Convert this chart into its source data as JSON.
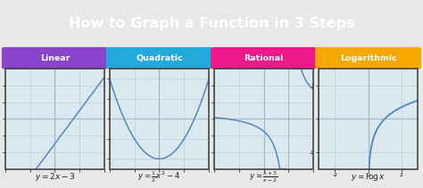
{
  "title": "How to Graph a Function in 3 Steps",
  "title_bg_top": "#3a3a3a",
  "title_bg_bottom": "#1a1a1a",
  "title_color": "#ffffff",
  "main_bg": "#e8e8e8",
  "categories": [
    "Linear",
    "Quadratic",
    "Rational",
    "Logarithmic"
  ],
  "category_colors": [
    "#8844cc",
    "#22aadd",
    "#ee1888",
    "#f5a800"
  ],
  "category_text_color": "#ffffff",
  "graph_bg": "#dce8f0",
  "graph_border": "#444444",
  "curve_color": "#5588bb",
  "grid_color": "#b8ccd8",
  "axis_color": "#8899aa",
  "eq_color": "#222222"
}
